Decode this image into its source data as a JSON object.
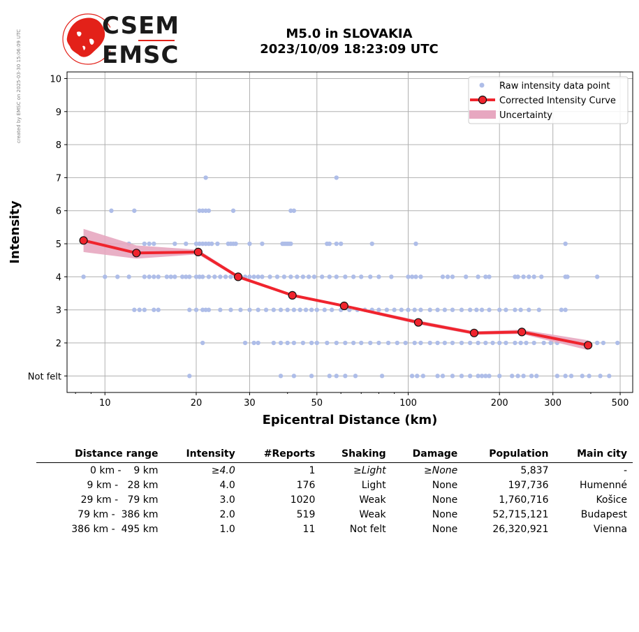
{
  "side_note": "created by EMSC on 2025-03-30 15:06:09 UTC",
  "logo": {
    "line1": "CSEM",
    "line2": "EMSC",
    "colors": {
      "red": "#e32119",
      "dark": "#1a1a1a"
    }
  },
  "title": {
    "line1": "M5.0 in SLOVAKIA",
    "line2": "2023/10/09 18:23:09 UTC"
  },
  "chart_data": {
    "type": "scatter",
    "xlabel": "Epicentral Distance (km)",
    "ylabel": "Intensity",
    "x_scale": "log",
    "xlim": [
      7.5,
      550
    ],
    "ylim": [
      0.5,
      10.2
    ],
    "x_ticks": [
      10,
      20,
      30,
      50,
      100,
      200,
      300,
      500
    ],
    "x_tick_labels": [
      "10",
      "20",
      "30",
      "50",
      "100",
      "200",
      "300",
      "500"
    ],
    "y_ticks": [
      1,
      2,
      3,
      4,
      5,
      6,
      7,
      8,
      9,
      10
    ],
    "y_tick_labels": [
      "Not felt",
      "2",
      "3",
      "4",
      "5",
      "6",
      "7",
      "8",
      "9",
      "10"
    ],
    "grid": true,
    "legend_position": "top-right",
    "legend": [
      "Raw intensity data point",
      "Corrected Intensity Curve",
      "Uncertainty"
    ],
    "colors": {
      "raw": "#aebde8",
      "curve": "#f0242d",
      "marker_edge": "#111111",
      "uncertainty": "#e7a7c0"
    },
    "raw_points": {
      "7": [
        21.5,
        58
      ],
      "6": [
        10.5,
        12.5,
        20.5,
        21,
        21.5,
        22,
        26.5,
        41,
        42
      ],
      "5": [
        12,
        13.5,
        14,
        14.5,
        17,
        18.5,
        20,
        20.5,
        21,
        21.5,
        22,
        22.5,
        23.5,
        25.5,
        26,
        26.5,
        27,
        30,
        33,
        38.5,
        39,
        39.5,
        40,
        40.5,
        41,
        54,
        55,
        58,
        60,
        76,
        106,
        330
      ],
      "4": [
        8.5,
        10,
        11,
        12,
        13.5,
        14,
        14.5,
        15,
        16,
        16.5,
        17,
        18,
        18.5,
        19,
        20,
        20.5,
        21,
        22,
        23,
        24,
        25,
        26,
        27,
        28,
        29,
        30,
        31,
        32,
        33,
        35,
        37,
        39,
        41,
        43,
        45,
        47,
        49,
        52,
        55,
        58,
        62,
        66,
        70,
        75,
        80,
        88,
        100,
        103,
        106,
        110,
        130,
        135,
        140,
        155,
        170,
        180,
        185,
        225,
        230,
        240,
        250,
        260,
        275,
        330,
        335,
        420
      ],
      "3": [
        12.5,
        13,
        13.5,
        14.5,
        15,
        19,
        20,
        21,
        21.5,
        22,
        24,
        26,
        28,
        30,
        32,
        34,
        36,
        38,
        40,
        42,
        44,
        46,
        48,
        50,
        53,
        56,
        60,
        64,
        68,
        72,
        76,
        80,
        85,
        90,
        95,
        100,
        105,
        110,
        118,
        125,
        132,
        140,
        150,
        160,
        168,
        175,
        185,
        200,
        210,
        225,
        235,
        250,
        270,
        320,
        330
      ],
      "2": [
        21,
        29,
        31,
        32,
        36,
        38,
        40,
        42,
        45,
        48,
        50,
        54,
        58,
        62,
        66,
        70,
        75,
        80,
        86,
        92,
        98,
        105,
        110,
        118,
        125,
        132,
        140,
        150,
        160,
        170,
        180,
        190,
        200,
        210,
        225,
        235,
        245,
        260,
        280,
        295,
        310,
        420,
        440,
        490
      ],
      "1": [
        19,
        38,
        42,
        48,
        55,
        58,
        62,
        67,
        82,
        103,
        107,
        112,
        125,
        130,
        140,
        150,
        160,
        170,
        175,
        180,
        185,
        200,
        220,
        230,
        240,
        255,
        265,
        310,
        330,
        345,
        375,
        395,
        430,
        460
      ]
    },
    "curve": {
      "x": [
        8.5,
        12.7,
        20.3,
        27.5,
        41.5,
        61.5,
        108,
        165,
        237,
        392
      ],
      "y": [
        5.1,
        4.72,
        4.75,
        4.0,
        3.44,
        3.12,
        2.62,
        2.3,
        2.33,
        1.93
      ]
    },
    "uncertainty": {
      "x": [
        8.5,
        12.7,
        20.3,
        27.5,
        41.5,
        61.5,
        108,
        165,
        237,
        392
      ],
      "lower": [
        4.75,
        4.55,
        4.68,
        3.95,
        3.4,
        3.08,
        2.56,
        2.25,
        2.27,
        1.78
      ],
      "upper": [
        5.45,
        4.95,
        4.82,
        4.05,
        3.48,
        3.16,
        2.68,
        2.35,
        2.4,
        2.08
      ]
    }
  },
  "table": {
    "headers": [
      "Distance range",
      "Intensity",
      "#Reports",
      "Shaking",
      "Damage",
      "Population",
      "Main city"
    ],
    "rows": [
      {
        "range": "0 km -    9 km",
        "intensity": "≥4.0",
        "reports": "1",
        "shaking": "≥Light",
        "damage": "≥None",
        "population": "5,837",
        "city": "-"
      },
      {
        "range": "9 km -   28 km",
        "intensity": "4.0",
        "reports": "176",
        "shaking": "Light",
        "damage": "None",
        "population": "197,736",
        "city": "Humenné"
      },
      {
        "range": "29 km -   79 km",
        "intensity": "3.0",
        "reports": "1020",
        "shaking": "Weak",
        "damage": "None",
        "population": "1,760,716",
        "city": "Košice"
      },
      {
        "range": "79 km -  386 km",
        "intensity": "2.0",
        "reports": "519",
        "shaking": "Weak",
        "damage": "None",
        "population": "52,715,121",
        "city": "Budapest"
      },
      {
        "range": "386 km -  495 km",
        "intensity": "1.0",
        "reports": "11",
        "shaking": "Not felt",
        "damage": "None",
        "population": "26,320,921",
        "city": "Vienna"
      }
    ]
  }
}
